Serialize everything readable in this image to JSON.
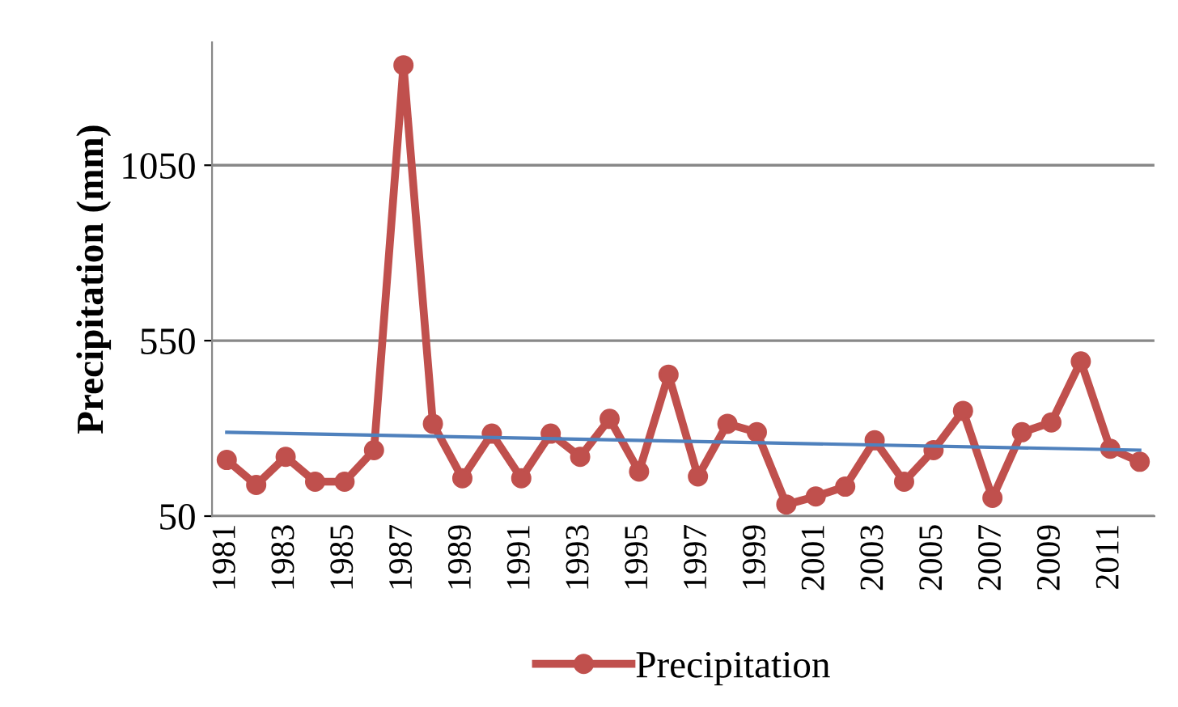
{
  "chart_data": {
    "type": "line",
    "ylabel": "Precipitation (mm)",
    "categories": [
      "1981",
      null,
      "1983",
      null,
      "1985",
      null,
      "1987",
      null,
      "1989",
      null,
      "1991",
      null,
      "1993",
      null,
      "1995",
      null,
      "1997",
      null,
      "1999",
      null,
      "2001",
      null,
      "2003",
      null,
      "2005",
      null,
      "2007",
      null,
      "2009",
      null,
      "2011",
      null
    ],
    "series": [
      {
        "name": "Precipitation",
        "color": "#c0504d",
        "marker": "circle",
        "values": [
          210,
          139,
          219,
          148,
          148,
          238,
          1335,
          313,
          158,
          285,
          158,
          285,
          219,
          327,
          177,
          453,
          163,
          313,
          289,
          83,
          106,
          134,
          266,
          148,
          238,
          350,
          102,
          289,
          317,
          491,
          242,
          205
        ]
      },
      {
        "color": "#4f81bd",
        "marker": "none",
        "values": [
          289,
          null,
          null,
          null,
          null,
          null,
          null,
          null,
          null,
          null,
          null,
          null,
          null,
          null,
          null,
          null,
          null,
          null,
          null,
          null,
          null,
          null,
          null,
          null,
          null,
          null,
          null,
          null,
          null,
          null,
          null,
          238
        ]
      }
    ],
    "ylim": [
      50,
      1400
    ],
    "yticks": [
      50,
      550,
      1050
    ],
    "grid": "y",
    "legend": "bottom"
  }
}
